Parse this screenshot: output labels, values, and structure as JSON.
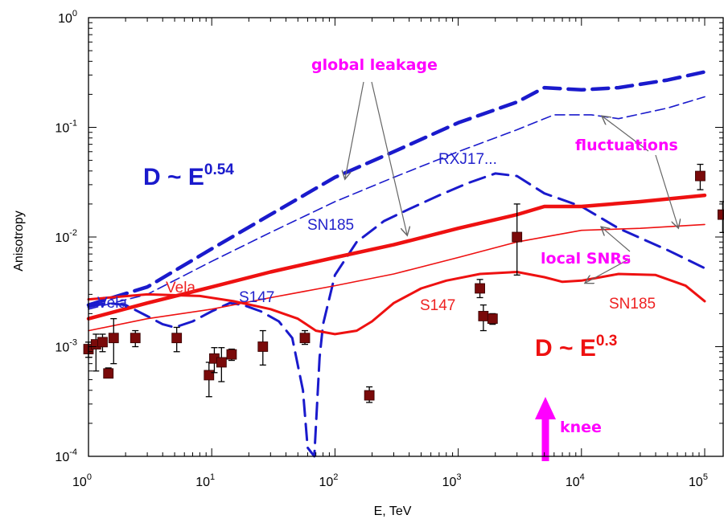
{
  "chart_data": {
    "type": "line",
    "title": "",
    "xlabel": "E, TeV",
    "ylabel": "Anisotropy",
    "x_scale": "log",
    "y_scale": "log",
    "xlim": [
      1,
      140000
    ],
    "ylim": [
      0.0001,
      1
    ],
    "x_ticks": [
      {
        "value": 1,
        "base": "10",
        "exp": "0"
      },
      {
        "value": 10,
        "base": "10",
        "exp": "1"
      },
      {
        "value": 100,
        "base": "10",
        "exp": "2"
      },
      {
        "value": 1000,
        "base": "10",
        "exp": "3"
      },
      {
        "value": 10000,
        "base": "10",
        "exp": "4"
      },
      {
        "value": 100000,
        "base": "10",
        "exp": "5"
      }
    ],
    "y_ticks": [
      {
        "value": 1,
        "base": "10",
        "exp": "0"
      },
      {
        "value": 0.1,
        "base": "10",
        "exp": "-1"
      },
      {
        "value": 0.01,
        "base": "10",
        "exp": "-2"
      },
      {
        "value": 0.001,
        "base": "10",
        "exp": "-3"
      },
      {
        "value": 0.0001,
        "base": "10",
        "exp": "-4"
      }
    ],
    "colors": {
      "blue": "#1a1acc",
      "red": "#ee1111",
      "magenta": "#ff00ff",
      "marker": "#7a0a0a"
    },
    "series": [
      {
        "key": "blue-thick-dash",
        "color": "#1a1acc",
        "dash": "dashed",
        "width": "thick",
        "points": [
          [
            1,
            0.0024
          ],
          [
            3,
            0.0035
          ],
          [
            10,
            0.0078
          ],
          [
            30,
            0.016
          ],
          [
            100,
            0.035
          ],
          [
            300,
            0.06
          ],
          [
            1000,
            0.11
          ],
          [
            3000,
            0.17
          ],
          [
            5000,
            0.23
          ],
          [
            10000,
            0.22
          ],
          [
            20000,
            0.23
          ],
          [
            50000,
            0.27
          ],
          [
            100000,
            0.32
          ]
        ]
      },
      {
        "key": "blue-thin-dash",
        "color": "#1a1acc",
        "dash": "dashed",
        "width": "thin",
        "points": [
          [
            1,
            0.0022
          ],
          [
            3,
            0.003
          ],
          [
            10,
            0.006
          ],
          [
            30,
            0.011
          ],
          [
            100,
            0.021
          ],
          [
            300,
            0.035
          ],
          [
            1000,
            0.06
          ],
          [
            3000,
            0.095
          ],
          [
            6000,
            0.13
          ],
          [
            12000,
            0.13
          ],
          [
            20000,
            0.12
          ],
          [
            50000,
            0.15
          ],
          [
            100000,
            0.19
          ]
        ]
      },
      {
        "key": "blue-snr-dash",
        "color": "#1a1acc",
        "dash": "dashed",
        "width": "medium",
        "points": [
          [
            1,
            0.0023
          ],
          [
            1.4,
            0.0025
          ],
          [
            2,
            0.0024
          ],
          [
            3,
            0.0019
          ],
          [
            4,
            0.0016
          ],
          [
            5,
            0.0015
          ],
          [
            7,
            0.0017
          ],
          [
            10,
            0.0021
          ],
          [
            14,
            0.0025
          ],
          [
            18,
            0.0024
          ],
          [
            25,
            0.0021
          ],
          [
            35,
            0.0017
          ],
          [
            45,
            0.0012
          ],
          [
            55,
            0.0004
          ],
          [
            60,
            0.00012
          ],
          [
            68,
            0.0001
          ],
          [
            75,
            0.0008
          ],
          [
            80,
            0.0016
          ],
          [
            100,
            0.0045
          ],
          [
            150,
            0.009
          ],
          [
            250,
            0.014
          ],
          [
            400,
            0.018
          ],
          [
            700,
            0.024
          ],
          [
            1200,
            0.031
          ],
          [
            2000,
            0.038
          ],
          [
            3000,
            0.036
          ],
          [
            5000,
            0.025
          ],
          [
            10000,
            0.019
          ],
          [
            20000,
            0.012
          ],
          [
            50000,
            0.0076
          ],
          [
            100000,
            0.0052
          ]
        ]
      },
      {
        "key": "red-thick",
        "color": "#ee1111",
        "dash": "solid",
        "width": "thick",
        "points": [
          [
            1,
            0.0018
          ],
          [
            3,
            0.0025
          ],
          [
            10,
            0.0035
          ],
          [
            30,
            0.0048
          ],
          [
            100,
            0.0065
          ],
          [
            300,
            0.0085
          ],
          [
            1000,
            0.012
          ],
          [
            3000,
            0.016
          ],
          [
            5000,
            0.019
          ],
          [
            10000,
            0.019
          ],
          [
            30000,
            0.021
          ],
          [
            100000,
            0.024
          ]
        ]
      },
      {
        "key": "red-thin",
        "color": "#ee1111",
        "dash": "solid",
        "width": "thin",
        "points": [
          [
            1,
            0.0014
          ],
          [
            3,
            0.0018
          ],
          [
            10,
            0.0022
          ],
          [
            30,
            0.0028
          ],
          [
            100,
            0.0036
          ],
          [
            300,
            0.0046
          ],
          [
            1000,
            0.0065
          ],
          [
            3000,
            0.009
          ],
          [
            10000,
            0.0115
          ],
          [
            30000,
            0.012
          ],
          [
            100000,
            0.013
          ]
        ]
      },
      {
        "key": "red-snr",
        "color": "#ee1111",
        "dash": "solid",
        "width": "medium",
        "points": [
          [
            1,
            0.0027
          ],
          [
            3,
            0.003
          ],
          [
            8,
            0.0029
          ],
          [
            15,
            0.0026
          ],
          [
            30,
            0.0022
          ],
          [
            50,
            0.0018
          ],
          [
            70,
            0.0014
          ],
          [
            100,
            0.0013
          ],
          [
            150,
            0.0014
          ],
          [
            200,
            0.0017
          ],
          [
            300,
            0.0025
          ],
          [
            500,
            0.0034
          ],
          [
            800,
            0.004
          ],
          [
            1500,
            0.0046
          ],
          [
            3000,
            0.0048
          ],
          [
            5000,
            0.0043
          ],
          [
            7000,
            0.0039
          ],
          [
            10000,
            0.004
          ],
          [
            20000,
            0.0046
          ],
          [
            40000,
            0.0045
          ],
          [
            70000,
            0.0036
          ],
          [
            100000,
            0.0026
          ]
        ]
      }
    ],
    "data_points": [
      {
        "x": 1.0,
        "y": 0.00095,
        "lo": 0.0008,
        "hi": 0.0011
      },
      {
        "x": 1.15,
        "y": 0.00105,
        "lo": 0.0006,
        "hi": 0.0013
      },
      {
        "x": 1.3,
        "y": 0.0011,
        "lo": 0.0009,
        "hi": 0.0013
      },
      {
        "x": 1.45,
        "y": 0.00057,
        "lo": 0.00052,
        "hi": 0.00064
      },
      {
        "x": 1.6,
        "y": 0.0012,
        "lo": 0.0007,
        "hi": 0.0018
      },
      {
        "x": 2.4,
        "y": 0.0012,
        "lo": 0.001,
        "hi": 0.0014
      },
      {
        "x": 5.2,
        "y": 0.0012,
        "lo": 0.0009,
        "hi": 0.0015
      },
      {
        "x": 9.5,
        "y": 0.00055,
        "lo": 0.00035,
        "hi": 0.00072
      },
      {
        "x": 10.5,
        "y": 0.00078,
        "lo": 0.00058,
        "hi": 0.00098
      },
      {
        "x": 12.0,
        "y": 0.00072,
        "lo": 0.00048,
        "hi": 0.00098
      },
      {
        "x": 14.5,
        "y": 0.00085,
        "lo": 0.00075,
        "hi": 0.00095
      },
      {
        "x": 26.0,
        "y": 0.001,
        "lo": 0.00068,
        "hi": 0.0014
      },
      {
        "x": 57.0,
        "y": 0.0012,
        "lo": 0.00105,
        "hi": 0.0014
      },
      {
        "x": 190.0,
        "y": 0.00036,
        "lo": 0.00031,
        "hi": 0.00043
      },
      {
        "x": 1500.0,
        "y": 0.0034,
        "lo": 0.0028,
        "hi": 0.0041
      },
      {
        "x": 1600.0,
        "y": 0.0019,
        "lo": 0.0014,
        "hi": 0.0024
      },
      {
        "x": 1900.0,
        "y": 0.0018,
        "lo": 0.0016,
        "hi": 0.002
      },
      {
        "x": 3000.0,
        "y": 0.01,
        "lo": 0.0045,
        "hi": 0.02
      },
      {
        "x": 92000.0,
        "y": 0.036,
        "lo": 0.027,
        "hi": 0.046
      },
      {
        "x": 140000.0,
        "y": 0.016,
        "lo": 0.011,
        "hi": 0.021
      }
    ],
    "annotations": {
      "global_leakage": "global  leakage",
      "fluctuations": "fluctuations",
      "local_snrs": "local  SNRs",
      "knee": "knee",
      "vela_blue": "Vela",
      "vela_red": "Vela",
      "s147_blue": "S147",
      "s147_red": "S147",
      "sn185_blue": "SN185",
      "sn185_red": "SN185",
      "rxj17": "RXJ17...",
      "d_blue_base": "D ~ E",
      "d_blue_exp": "0.54",
      "d_red_base": "D ~ E",
      "d_red_exp": "0.3"
    }
  }
}
